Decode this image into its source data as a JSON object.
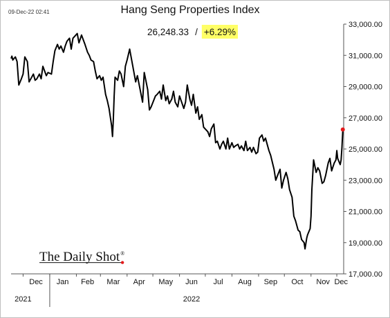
{
  "chart_data": {
    "type": "line",
    "title": "Hang Seng Properties Index",
    "timestamp": "09-Dec-22 02:41",
    "last_value": "26,248.33",
    "separator": "/",
    "change": "+6.29%",
    "highlight_color": "#ffff66",
    "line_color": "#000000",
    "end_marker_color": "#e31a1c",
    "brand": "The Daily Shot",
    "brand_mark": "®",
    "ylim": [
      17000,
      33000
    ],
    "y_ticks": [
      17000,
      19000,
      21000,
      23000,
      25000,
      27000,
      29000,
      31000,
      33000
    ],
    "y_tick_labels": [
      "17,000.00",
      "19,000.00",
      "21,000.00",
      "23,000.00",
      "25,000.00",
      "27,000.00",
      "29,000.00",
      "31,000.00",
      "33,000.00"
    ],
    "y_axis_side": "right",
    "grid": false,
    "xlim": [
      "2021-11-17",
      "2022-12-09"
    ],
    "x_month_labels": [
      {
        "label": "Dec",
        "date": "2021-12-16"
      },
      {
        "label": "Jan",
        "date": "2022-01-16"
      },
      {
        "label": "Feb",
        "date": "2022-02-14"
      },
      {
        "label": "Mar",
        "date": "2022-03-16"
      },
      {
        "label": "Apr",
        "date": "2022-04-15"
      },
      {
        "label": "May",
        "date": "2022-05-16"
      },
      {
        "label": "Jun",
        "date": "2022-06-15"
      },
      {
        "label": "Jul",
        "date": "2022-07-16"
      },
      {
        "label": "Aug",
        "date": "2022-08-16"
      },
      {
        "label": "Sep",
        "date": "2022-09-15"
      },
      {
        "label": "Oct",
        "date": "2022-10-16"
      },
      {
        "label": "Nov",
        "date": "2022-11-15"
      },
      {
        "label": "Dec",
        "date": "2022-12-06"
      }
    ],
    "month_boundaries": [
      "2021-12-01",
      "2022-01-01",
      "2022-02-01",
      "2022-03-01",
      "2022-04-01",
      "2022-05-01",
      "2022-06-01",
      "2022-07-01",
      "2022-08-01",
      "2022-09-01",
      "2022-10-01",
      "2022-11-01",
      "2022-12-01"
    ],
    "year_labels": [
      {
        "label": "2021",
        "date": "2021-12-01"
      },
      {
        "label": "2022",
        "date": "2022-06-15"
      }
    ],
    "series": [
      {
        "x": [
          "2021-11-17",
          "2021-11-18",
          "2021-11-19",
          "2021-11-22",
          "2021-11-24",
          "2021-11-26",
          "2021-11-29",
          "2021-12-01",
          "2021-12-03",
          "2021-12-06",
          "2021-12-08",
          "2021-12-10",
          "2021-12-13",
          "2021-12-15",
          "2021-12-17",
          "2021-12-20",
          "2021-12-22",
          "2021-12-24",
          "2021-12-28",
          "2021-12-30",
          "2022-01-03",
          "2022-01-05",
          "2022-01-07",
          "2022-01-10",
          "2022-01-12",
          "2022-01-14",
          "2022-01-17",
          "2022-01-19",
          "2022-01-21",
          "2022-01-24",
          "2022-01-26",
          "2022-01-28",
          "2022-02-02",
          "2022-02-04",
          "2022-02-07",
          "2022-02-09",
          "2022-02-11",
          "2022-02-14",
          "2022-02-16",
          "2022-02-18",
          "2022-02-21",
          "2022-02-23",
          "2022-02-25",
          "2022-02-28",
          "2022-03-02",
          "2022-03-04",
          "2022-03-07",
          "2022-03-09",
          "2022-03-11",
          "2022-03-14",
          "2022-03-15",
          "2022-03-16",
          "2022-03-17",
          "2022-03-18",
          "2022-03-21",
          "2022-03-23",
          "2022-03-25",
          "2022-03-28",
          "2022-03-30",
          "2022-04-01",
          "2022-04-04",
          "2022-04-06",
          "2022-04-08",
          "2022-04-11",
          "2022-04-13",
          "2022-04-19",
          "2022-04-21",
          "2022-04-25",
          "2022-04-27",
          "2022-04-29",
          "2022-05-04",
          "2022-05-06",
          "2022-05-09",
          "2022-05-11",
          "2022-05-13",
          "2022-05-16",
          "2022-05-18",
          "2022-05-20",
          "2022-05-23",
          "2022-05-25",
          "2022-05-27",
          "2022-05-30",
          "2022-06-01",
          "2022-06-06",
          "2022-06-08",
          "2022-06-10",
          "2022-06-13",
          "2022-06-15",
          "2022-06-17",
          "2022-06-20",
          "2022-06-22",
          "2022-06-24",
          "2022-06-27",
          "2022-06-29",
          "2022-07-04",
          "2022-07-06",
          "2022-07-08",
          "2022-07-11",
          "2022-07-13",
          "2022-07-15",
          "2022-07-18",
          "2022-07-20",
          "2022-07-22",
          "2022-07-25",
          "2022-07-27",
          "2022-07-29",
          "2022-08-01",
          "2022-08-03",
          "2022-08-05",
          "2022-08-08",
          "2022-08-10",
          "2022-08-12",
          "2022-08-15",
          "2022-08-17",
          "2022-08-19",
          "2022-08-22",
          "2022-08-24",
          "2022-08-26",
          "2022-08-29",
          "2022-08-31",
          "2022-09-02",
          "2022-09-05",
          "2022-09-07",
          "2022-09-09",
          "2022-09-13",
          "2022-09-15",
          "2022-09-19",
          "2022-09-21",
          "2022-09-23",
          "2022-09-26",
          "2022-09-28",
          "2022-09-30",
          "2022-10-03",
          "2022-10-05",
          "2022-10-07",
          "2022-10-10",
          "2022-10-12",
          "2022-10-14",
          "2022-10-17",
          "2022-10-19",
          "2022-10-21",
          "2022-10-24",
          "2022-10-25",
          "2022-10-27",
          "2022-10-28",
          "2022-10-31",
          "2022-11-01",
          "2022-11-02",
          "2022-11-04",
          "2022-11-07",
          "2022-11-09",
          "2022-11-11",
          "2022-11-14",
          "2022-11-16",
          "2022-11-18",
          "2022-11-21",
          "2022-11-23",
          "2022-11-25",
          "2022-11-28",
          "2022-11-30",
          "2022-12-01",
          "2022-12-02",
          "2022-12-05",
          "2022-12-06",
          "2022-12-07",
          "2022-12-08"
        ],
        "values": [
          30800,
          30950,
          30700,
          30900,
          30600,
          29100,
          29500,
          29800,
          30900,
          30600,
          29300,
          29500,
          29800,
          29400,
          29500,
          29800,
          29500,
          30300,
          29700,
          29900,
          29800,
          30600,
          31300,
          31700,
          31400,
          31600,
          31200,
          31600,
          31900,
          32100,
          31400,
          32100,
          32400,
          31800,
          32300,
          32000,
          31700,
          31200,
          31000,
          30700,
          30600,
          30000,
          29500,
          29700,
          29400,
          29600,
          28500,
          28100,
          27600,
          26500,
          25800,
          26900,
          28400,
          29600,
          29400,
          30000,
          29800,
          29000,
          30300,
          30700,
          31400,
          30800,
          30200,
          29300,
          29700,
          28000,
          29900,
          28800,
          27500,
          27700,
          28400,
          28500,
          28700,
          28200,
          29100,
          28100,
          28400,
          27900,
          28200,
          28700,
          28000,
          27700,
          28400,
          27600,
          28000,
          29100,
          28200,
          27800,
          28500,
          27300,
          27700,
          26900,
          27200,
          26400,
          26100,
          25800,
          26300,
          26600,
          25400,
          25500,
          25000,
          25300,
          25500,
          25000,
          25700,
          25000,
          25400,
          25100,
          25200,
          25300,
          25000,
          25200,
          24900,
          25500,
          24900,
          25100,
          24800,
          25100,
          24700,
          24800,
          25700,
          25900,
          25500,
          25700,
          24900,
          24600,
          23700,
          23000,
          23300,
          23700,
          22500,
          23000,
          23500,
          23100,
          22400,
          21900,
          20700,
          20400,
          19800,
          19700,
          19200,
          19000,
          18600,
          19300,
          19500,
          19900,
          20700,
          22400,
          24300,
          23500,
          23800,
          23600,
          22800,
          22900,
          23300,
          24100,
          24400,
          23600,
          24100,
          24300,
          24900,
          24400,
          24000,
          24300,
          25100,
          26248
        ]
      }
    ]
  }
}
